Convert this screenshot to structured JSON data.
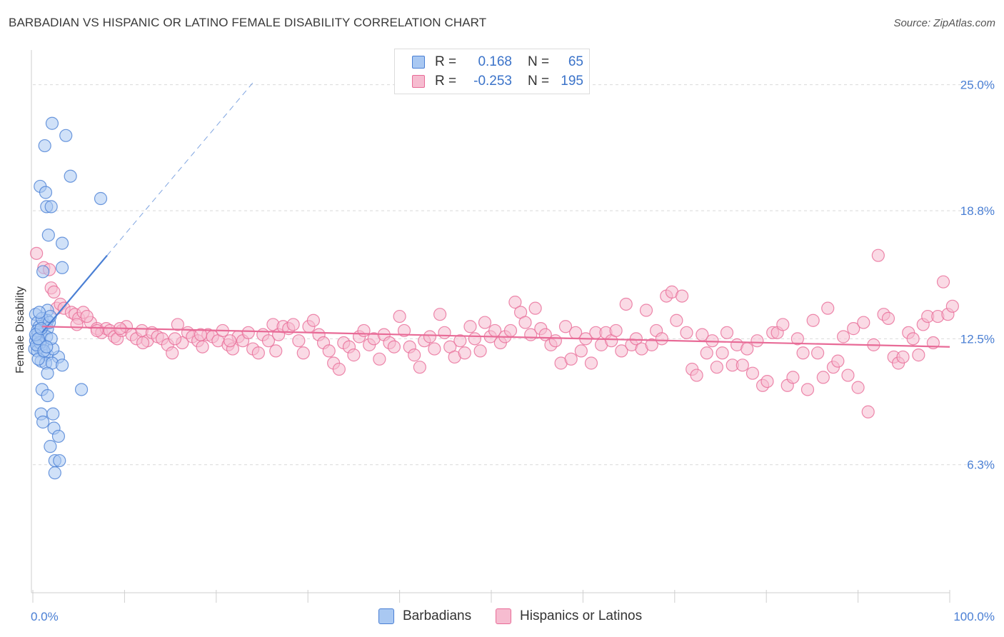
{
  "title": "BARBADIAN VS HISPANIC OR LATINO FEMALE DISABILITY CORRELATION CHART",
  "source": "Source: ZipAtlas.com",
  "colors": {
    "blue": "#4a7fd4",
    "blue_fill": "#a9c8f2",
    "pink": "#e86b97",
    "pink_fill": "#f6bcd0",
    "grid": "#d9d9d9"
  },
  "legend": {
    "rows": [
      {
        "r_label": "R =",
        "r_value": "0.168",
        "n_label": "N =",
        "n_value": "65"
      },
      {
        "r_label": "R =",
        "r_value": "-0.253",
        "n_label": "N =",
        "n_value": "195"
      }
    ]
  },
  "bottom_legend": {
    "items": [
      "Barbadians",
      "Hispanics or Latinos"
    ]
  },
  "chart_data": {
    "type": "scatter",
    "title": "BARBADIAN VS HISPANIC OR LATINO FEMALE DISABILITY CORRELATION CHART",
    "xlabel": "",
    "ylabel": "Female Disability",
    "xlim": [
      0,
      100
    ],
    "ylim": [
      0,
      26.5
    ],
    "x_tick_labels": [
      "0.0%",
      "100.0%"
    ],
    "y_ticks": [
      6.3,
      12.5,
      18.8,
      25.0
    ],
    "y_tick_labels": [
      "6.3%",
      "12.5%",
      "18.8%",
      "25.0%"
    ],
    "grid": true,
    "legend_position": "top-center",
    "series": [
      {
        "name": "Barbadians",
        "r": 0.168,
        "n": 65,
        "trend": {
          "x0": 1.0,
          "y0": 12.8,
          "x1": 8.1,
          "y1": 16.6,
          "dashed_to_x": 24.0,
          "dashed_to_y": 25.1
        },
        "points": [
          [
            2.1,
            23.1
          ],
          [
            3.6,
            22.5
          ],
          [
            1.3,
            22.0
          ],
          [
            4.1,
            20.5
          ],
          [
            0.8,
            20.0
          ],
          [
            1.4,
            19.7
          ],
          [
            7.4,
            19.4
          ],
          [
            1.5,
            19.0
          ],
          [
            2.0,
            19.0
          ],
          [
            1.7,
            17.6
          ],
          [
            3.2,
            17.2
          ],
          [
            3.2,
            16.0
          ],
          [
            1.1,
            15.8
          ],
          [
            1.6,
            13.9
          ],
          [
            0.3,
            13.7
          ],
          [
            1.6,
            13.4
          ],
          [
            0.5,
            13.3
          ],
          [
            1.3,
            13.2
          ],
          [
            0.7,
            13.1
          ],
          [
            1.6,
            13.0
          ],
          [
            0.6,
            12.8
          ],
          [
            0.9,
            12.7
          ],
          [
            1.5,
            12.6
          ],
          [
            0.4,
            12.6
          ],
          [
            0.3,
            12.4
          ],
          [
            0.7,
            12.3
          ],
          [
            1.1,
            12.2
          ],
          [
            0.6,
            12.1
          ],
          [
            0.2,
            12.0
          ],
          [
            0.5,
            11.9
          ],
          [
            1.3,
            11.8
          ],
          [
            1.6,
            11.7
          ],
          [
            2.8,
            11.6
          ],
          [
            0.9,
            11.4
          ],
          [
            1.4,
            11.3
          ],
          [
            2.1,
            11.3
          ],
          [
            3.2,
            11.2
          ],
          [
            0.6,
            11.5
          ],
          [
            1.6,
            10.8
          ],
          [
            2.2,
            12.0
          ],
          [
            0.8,
            12.3
          ],
          [
            0.5,
            12.9
          ],
          [
            1.0,
            13.5
          ],
          [
            1.8,
            13.3
          ],
          [
            2.0,
            12.5
          ],
          [
            0.4,
            12.2
          ],
          [
            1.2,
            11.9
          ],
          [
            0.3,
            12.7
          ],
          [
            1.9,
            13.6
          ],
          [
            0.7,
            13.8
          ],
          [
            5.3,
            10.0
          ],
          [
            1.0,
            10.0
          ],
          [
            1.6,
            9.7
          ],
          [
            0.9,
            8.8
          ],
          [
            2.2,
            8.8
          ],
          [
            1.1,
            8.4
          ],
          [
            2.3,
            8.1
          ],
          [
            2.8,
            7.7
          ],
          [
            1.9,
            7.2
          ],
          [
            2.4,
            6.5
          ],
          [
            2.9,
            6.5
          ],
          [
            2.4,
            5.9
          ],
          [
            0.6,
            12.5
          ],
          [
            1.5,
            12.1
          ],
          [
            0.9,
            13.0
          ]
        ]
      },
      {
        "name": "Hispanics or Latinos",
        "r": -0.253,
        "n": 195,
        "trend": {
          "x0": 1.0,
          "y0": 13.1,
          "x1": 100.0,
          "y1": 12.1
        },
        "points": [
          [
            0.4,
            16.7
          ],
          [
            1.2,
            16.0
          ],
          [
            1.8,
            15.9
          ],
          [
            2.0,
            15.0
          ],
          [
            2.3,
            14.8
          ],
          [
            2.6,
            14.0
          ],
          [
            3.0,
            14.2
          ],
          [
            3.4,
            14.0
          ],
          [
            4.2,
            13.8
          ],
          [
            4.6,
            13.7
          ],
          [
            5.0,
            13.5
          ],
          [
            5.5,
            13.8
          ],
          [
            6.3,
            13.3
          ],
          [
            5.9,
            13.6
          ],
          [
            4.8,
            13.2
          ],
          [
            7.0,
            13.0
          ],
          [
            7.5,
            12.8
          ],
          [
            8.0,
            13.0
          ],
          [
            8.4,
            12.9
          ],
          [
            8.9,
            12.6
          ],
          [
            9.2,
            12.5
          ],
          [
            9.7,
            12.9
          ],
          [
            10.2,
            13.1
          ],
          [
            10.8,
            12.7
          ],
          [
            11.3,
            12.5
          ],
          [
            11.9,
            12.9
          ],
          [
            12.5,
            12.4
          ],
          [
            13.0,
            12.8
          ],
          [
            13.6,
            12.6
          ],
          [
            14.1,
            12.5
          ],
          [
            14.7,
            12.2
          ],
          [
            15.2,
            11.8
          ],
          [
            15.8,
            13.2
          ],
          [
            16.3,
            12.3
          ],
          [
            16.9,
            12.8
          ],
          [
            17.4,
            12.6
          ],
          [
            18.0,
            12.4
          ],
          [
            18.5,
            12.1
          ],
          [
            19.1,
            12.7
          ],
          [
            19.6,
            12.6
          ],
          [
            20.2,
            12.4
          ],
          [
            20.7,
            12.9
          ],
          [
            21.3,
            12.2
          ],
          [
            21.8,
            12.0
          ],
          [
            22.4,
            12.6
          ],
          [
            22.9,
            12.4
          ],
          [
            23.5,
            12.8
          ],
          [
            24.0,
            12.0
          ],
          [
            24.6,
            11.8
          ],
          [
            25.1,
            12.7
          ],
          [
            25.7,
            12.4
          ],
          [
            26.2,
            13.2
          ],
          [
            26.8,
            12.7
          ],
          [
            27.3,
            13.1
          ],
          [
            27.9,
            13.0
          ],
          [
            28.4,
            13.2
          ],
          [
            29.0,
            12.4
          ],
          [
            29.5,
            11.8
          ],
          [
            30.1,
            13.1
          ],
          [
            30.6,
            13.4
          ],
          [
            31.2,
            12.7
          ],
          [
            31.7,
            12.3
          ],
          [
            32.3,
            11.9
          ],
          [
            32.8,
            11.3
          ],
          [
            33.4,
            11.0
          ],
          [
            33.9,
            12.3
          ],
          [
            34.5,
            12.1
          ],
          [
            35.0,
            11.7
          ],
          [
            35.6,
            12.6
          ],
          [
            36.1,
            12.9
          ],
          [
            36.7,
            12.2
          ],
          [
            37.2,
            12.5
          ],
          [
            37.8,
            11.5
          ],
          [
            38.3,
            12.7
          ],
          [
            38.9,
            12.3
          ],
          [
            39.4,
            12.1
          ],
          [
            40.0,
            13.6
          ],
          [
            40.5,
            12.9
          ],
          [
            41.1,
            12.1
          ],
          [
            41.6,
            11.7
          ],
          [
            42.2,
            11.1
          ],
          [
            42.7,
            12.4
          ],
          [
            43.3,
            12.6
          ],
          [
            43.8,
            12.0
          ],
          [
            44.4,
            13.7
          ],
          [
            44.9,
            12.8
          ],
          [
            45.5,
            12.1
          ],
          [
            46.0,
            11.6
          ],
          [
            46.6,
            12.4
          ],
          [
            47.1,
            11.8
          ],
          [
            47.7,
            13.1
          ],
          [
            48.2,
            12.5
          ],
          [
            48.8,
            11.9
          ],
          [
            49.3,
            13.3
          ],
          [
            49.9,
            12.6
          ],
          [
            50.4,
            12.9
          ],
          [
            51.0,
            12.3
          ],
          [
            51.5,
            12.6
          ],
          [
            52.1,
            12.9
          ],
          [
            52.6,
            14.3
          ],
          [
            53.2,
            13.8
          ],
          [
            53.7,
            13.3
          ],
          [
            54.3,
            12.7
          ],
          [
            54.8,
            14.0
          ],
          [
            55.4,
            13.0
          ],
          [
            55.9,
            12.7
          ],
          [
            56.5,
            12.2
          ],
          [
            57.0,
            12.4
          ],
          [
            57.6,
            11.3
          ],
          [
            58.1,
            13.1
          ],
          [
            58.7,
            11.5
          ],
          [
            59.2,
            12.8
          ],
          [
            59.8,
            11.9
          ],
          [
            60.3,
            12.5
          ],
          [
            60.9,
            11.3
          ],
          [
            61.4,
            12.8
          ],
          [
            62.0,
            12.2
          ],
          [
            62.5,
            12.8
          ],
          [
            63.1,
            12.4
          ],
          [
            63.6,
            12.9
          ],
          [
            64.2,
            11.9
          ],
          [
            64.7,
            14.2
          ],
          [
            65.3,
            12.2
          ],
          [
            65.8,
            12.5
          ],
          [
            66.4,
            12.0
          ],
          [
            66.9,
            13.9
          ],
          [
            67.5,
            12.2
          ],
          [
            68.0,
            12.9
          ],
          [
            68.6,
            12.5
          ],
          [
            69.1,
            14.6
          ],
          [
            69.7,
            14.8
          ],
          [
            70.2,
            13.4
          ],
          [
            70.8,
            14.6
          ],
          [
            71.3,
            12.8
          ],
          [
            71.9,
            11.0
          ],
          [
            72.4,
            10.7
          ],
          [
            73.0,
            12.7
          ],
          [
            73.5,
            11.8
          ],
          [
            74.1,
            12.4
          ],
          [
            74.6,
            11.1
          ],
          [
            75.2,
            11.8
          ],
          [
            75.7,
            12.8
          ],
          [
            76.3,
            11.2
          ],
          [
            76.8,
            12.2
          ],
          [
            77.4,
            11.2
          ],
          [
            77.9,
            12.0
          ],
          [
            78.5,
            10.8
          ],
          [
            79.0,
            12.4
          ],
          [
            79.6,
            10.2
          ],
          [
            80.1,
            10.4
          ],
          [
            80.7,
            12.8
          ],
          [
            81.2,
            12.8
          ],
          [
            81.8,
            13.2
          ],
          [
            82.3,
            10.2
          ],
          [
            82.9,
            10.6
          ],
          [
            83.4,
            12.5
          ],
          [
            84.0,
            11.8
          ],
          [
            84.5,
            10.0
          ],
          [
            85.1,
            13.4
          ],
          [
            85.6,
            11.8
          ],
          [
            86.2,
            10.6
          ],
          [
            86.7,
            14.0
          ],
          [
            87.3,
            11.1
          ],
          [
            87.8,
            11.4
          ],
          [
            88.4,
            12.6
          ],
          [
            88.9,
            10.7
          ],
          [
            89.5,
            13.0
          ],
          [
            90.0,
            10.1
          ],
          [
            90.6,
            13.3
          ],
          [
            91.1,
            8.9
          ],
          [
            91.7,
            12.2
          ],
          [
            92.2,
            16.6
          ],
          [
            92.8,
            13.7
          ],
          [
            93.3,
            13.5
          ],
          [
            93.9,
            11.6
          ],
          [
            94.4,
            11.3
          ],
          [
            94.9,
            11.6
          ],
          [
            95.5,
            12.8
          ],
          [
            96.0,
            12.5
          ],
          [
            96.6,
            11.7
          ],
          [
            97.1,
            13.2
          ],
          [
            97.6,
            13.6
          ],
          [
            98.2,
            12.3
          ],
          [
            98.7,
            13.6
          ],
          [
            99.3,
            15.3
          ],
          [
            99.8,
            13.7
          ],
          [
            100.3,
            14.1
          ],
          [
            7.0,
            12.9
          ],
          [
            9.5,
            13.0
          ],
          [
            12.0,
            12.3
          ],
          [
            15.5,
            12.5
          ],
          [
            18.3,
            12.7
          ],
          [
            21.5,
            12.4
          ],
          [
            26.5,
            11.9
          ]
        ]
      }
    ]
  }
}
